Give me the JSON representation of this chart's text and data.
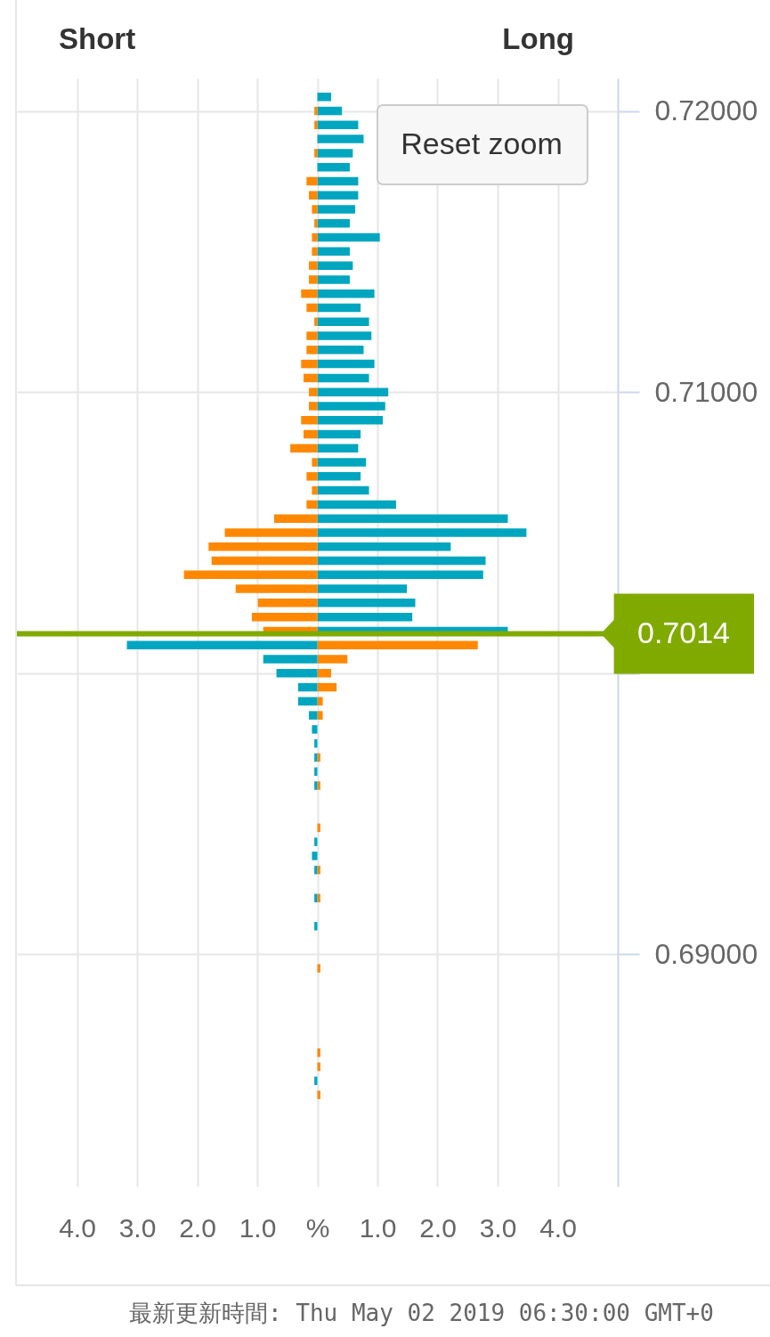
{
  "chart_data": {
    "type": "bar",
    "orientation": "horizontal",
    "stacked": true,
    "x": [
      0.7205,
      0.72,
      0.7195,
      0.719,
      0.7185,
      0.718,
      0.7175,
      0.717,
      0.7165,
      0.716,
      0.7155,
      0.715,
      0.7145,
      0.714,
      0.7135,
      0.713,
      0.7125,
      0.712,
      0.7115,
      0.711,
      0.7105,
      0.71,
      0.7095,
      0.709,
      0.7085,
      0.708,
      0.7075,
      0.707,
      0.7065,
      0.706,
      0.7055,
      0.705,
      0.7045,
      0.704,
      0.7035,
      0.703,
      0.7025,
      0.702,
      0.7015,
      0.701,
      0.7005,
      0.7,
      0.6995,
      0.699,
      0.6985,
      0.698,
      0.6975,
      0.697,
      0.6965,
      0.696,
      0.6955,
      0.695,
      0.6945,
      0.694,
      0.6935,
      0.693,
      0.6925,
      0.692,
      0.6915,
      0.691,
      0.6905,
      0.69,
      0.6895,
      0.689,
      0.6885,
      0.688,
      0.6875,
      0.687,
      0.6865,
      0.686,
      0.6855,
      0.685
    ],
    "series": [
      {
        "colors": [
          "#00a6bf",
          "#00a6bf",
          "#00a6bf",
          "#00a6bf",
          "#00a6bf",
          "#00a6bf",
          "#00a6bf",
          "#00a6bf",
          "#00a6bf",
          "#00a6bf",
          "#00a6bf",
          "#00a6bf",
          "#00a6bf",
          "#00a6bf",
          "#00a6bf",
          "#00a6bf",
          "#00a6bf",
          "#00a6bf",
          "#00a6bf",
          "#00a6bf",
          "#00a6bf",
          "#00a6bf",
          "#00a6bf",
          "#00a6bf",
          "#00a6bf",
          "#00a6bf",
          "#00a6bf",
          "#00a6bf",
          "#00a6bf",
          "#00a6bf",
          "#00a6bf",
          "#00a6bf",
          "#00a6bf",
          "#00a6bf",
          "#00a6bf",
          "#00a6bf",
          "#00a6bf",
          "#00a6bf",
          "#00a6bf",
          "#ff8800",
          "#ff8800",
          "#ff8800",
          "#ff8800",
          "#ff8800",
          "#ff8800",
          "#ff8800",
          "#ff8800",
          "#ff8800",
          "#ff8800",
          "#ff8800",
          "#ff8800",
          "#ff8800",
          "#ff8800",
          "#ff8800",
          "#ff8800",
          "#ff8800",
          "#ff8800",
          "#ff8800",
          "#ff8800",
          "#ff8800",
          "#ff8800",
          "#ff8800",
          "#ff8800",
          "#ff8800",
          "#ff8800",
          "#ff8800",
          "#ff8800",
          "#ff8800",
          "#ff8800",
          "#ff8800",
          "#ff8800",
          "#ff8800"
        ],
        "values": [
          0.23,
          0.41,
          0.68,
          0.77,
          0.59,
          0.54,
          0.68,
          0.68,
          0.63,
          0.54,
          1.04,
          0.54,
          0.59,
          0.54,
          0.95,
          0.72,
          0.86,
          0.9,
          0.77,
          0.95,
          0.86,
          1.18,
          1.13,
          1.09,
          0.72,
          0.68,
          0.81,
          0.72,
          0.86,
          1.31,
          3.17,
          3.48,
          2.22,
          2.8,
          2.76,
          1.49,
          1.63,
          1.58,
          3.17,
          2.67,
          0.5,
          0.23,
          0.32,
          0.09,
          0.09,
          null,
          null,
          0.05,
          null,
          0.05,
          null,
          null,
          0.05,
          null,
          null,
          0.05,
          null,
          0.05,
          null,
          null,
          null,
          null,
          0.05,
          null,
          null,
          null,
          null,
          null,
          0.05,
          0.05,
          null,
          0.05
        ]
      },
      {
        "colors": [
          "#ff8800",
          "#ff8800",
          "#ff8800",
          "#ff8800",
          "#ff8800",
          "#ff8800",
          "#ff8800",
          "#ff8800",
          "#ff8800",
          "#ff8800",
          "#ff8800",
          "#ff8800",
          "#ff8800",
          "#ff8800",
          "#ff8800",
          "#ff8800",
          "#ff8800",
          "#ff8800",
          "#ff8800",
          "#ff8800",
          "#ff8800",
          "#ff8800",
          "#ff8800",
          "#ff8800",
          "#ff8800",
          "#ff8800",
          "#ff8800",
          "#ff8800",
          "#ff8800",
          "#ff8800",
          "#ff8800",
          "#ff8800",
          "#ff8800",
          "#ff8800",
          "#ff8800",
          "#ff8800",
          "#ff8800",
          "#ff8800",
          "#ff8800",
          "#00a6bf",
          "#00a6bf",
          "#00a6bf",
          "#00a6bf",
          "#00a6bf",
          "#00a6bf",
          "#00a6bf",
          "#00a6bf",
          "#00a6bf",
          "#00a6bf",
          "#00a6bf",
          "#00a6bf",
          "#00a6bf",
          "#00a6bf",
          "#00a6bf",
          "#00a6bf",
          "#00a6bf",
          "#00a6bf",
          "#00a6bf",
          "#00a6bf",
          "#00a6bf",
          "#00a6bf",
          "#00a6bf",
          "#00a6bf",
          "#00a6bf",
          "#00a6bf",
          "#00a6bf",
          "#00a6bf",
          "#00a6bf",
          "#00a6bf",
          "#00a6bf",
          "#00a6bf",
          "#00a6bf"
        ],
        "values": [
          null,
          -0.05,
          -0.05,
          null,
          -0.05,
          null,
          -0.18,
          -0.14,
          -0.09,
          -0.05,
          -0.09,
          -0.09,
          -0.14,
          -0.14,
          -0.27,
          -0.18,
          -0.05,
          -0.18,
          -0.18,
          -0.27,
          -0.23,
          -0.14,
          -0.14,
          -0.27,
          -0.23,
          -0.45,
          -0.09,
          -0.18,
          -0.09,
          -0.18,
          -0.72,
          -1.54,
          -1.81,
          -1.76,
          -2.22,
          -1.36,
          -0.99,
          -1.09,
          -0.9,
          -3.17,
          -0.9,
          -0.68,
          -0.32,
          -0.32,
          -0.14,
          -0.09,
          -0.05,
          -0.05,
          -0.05,
          -0.05,
          null,
          null,
          null,
          -0.05,
          -0.09,
          -0.05,
          null,
          -0.05,
          null,
          -0.05,
          null,
          null,
          null,
          null,
          null,
          null,
          null,
          null,
          null,
          null,
          -0.05,
          null
        ]
      }
    ],
    "xlim": [
      -5,
      5
    ],
    "xticks": [
      {
        "value": -4,
        "label": "4.0"
      },
      {
        "value": -3,
        "label": "3.0"
      },
      {
        "value": -2,
        "label": "2.0"
      },
      {
        "value": -1,
        "label": "1.0"
      },
      {
        "value": 0,
        "label": "%"
      },
      {
        "value": 1,
        "label": "1.0"
      },
      {
        "value": 2,
        "label": "2.0"
      },
      {
        "value": 3,
        "label": "3.0"
      },
      {
        "value": 4,
        "label": "4.0"
      }
    ],
    "ylim": [
      0.6819,
      0.721
    ],
    "yticks": [
      {
        "value": 0.69,
        "label": "0.69000"
      },
      {
        "value": 0.7,
        "label": null
      },
      {
        "value": 0.71,
        "label": "0.71000"
      },
      {
        "value": 0.72,
        "label": "0.72000"
      }
    ],
    "grid": true,
    "ref_lines": [
      {
        "axis": "y",
        "value": 0.7014,
        "label": "0.7014",
        "color": "#80aa00"
      }
    ],
    "annotations": [
      "Short",
      "Long",
      "Reset zoom",
      "最新更新時間: Thu May 02 2019 06:30:00 GMT+0"
    ]
  }
}
